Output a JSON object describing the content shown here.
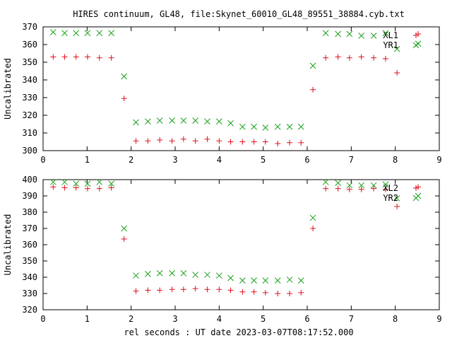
{
  "title": "HIRES continuum, GL48, file:Skynet_60010_GL48_89551_38884.cyb.txt",
  "xlabel": "rel seconds : UT date 2023-03-07T08:17:52.000",
  "colors": {
    "red": "#e0101a",
    "green": "#1aa01a"
  },
  "chart_data": [
    {
      "type": "scatter",
      "ylabel": "Uncalibrated",
      "xlim": [
        0,
        9
      ],
      "ylim": [
        300,
        370
      ],
      "xticks": [
        "0",
        "1",
        "2",
        "3",
        "4",
        "5",
        "6",
        "7",
        "8",
        "9"
      ],
      "yticks": [
        "300",
        "310",
        "320",
        "330",
        "340",
        "350",
        "360",
        "370"
      ],
      "grid": false,
      "legend_position": "top-right",
      "series": [
        {
          "name": "XL1",
          "marker": "plus",
          "color": "#e0101a",
          "x": [
            0.23,
            0.49,
            0.75,
            1.01,
            1.28,
            1.55,
            1.84,
            2.11,
            2.38,
            2.65,
            2.93,
            3.19,
            3.46,
            3.73,
            4.0,
            4.26,
            4.53,
            4.79,
            5.05,
            5.33,
            5.6,
            5.86,
            6.13,
            6.42,
            6.7,
            6.96,
            7.23,
            7.51,
            7.78,
            8.04,
            8.52
          ],
          "y": [
            353,
            353,
            353,
            353,
            352.5,
            352.5,
            329.5,
            305.5,
            305.5,
            306,
            305.5,
            306.5,
            305.5,
            306.5,
            305.5,
            305,
            305,
            305,
            305,
            304,
            304.5,
            304.5,
            334.5,
            352.5,
            353,
            352.5,
            353,
            352.5,
            352,
            344,
            366
          ]
        },
        {
          "name": "YR1",
          "marker": "cross",
          "color": "#1aa01a",
          "x": [
            0.23,
            0.49,
            0.75,
            1.01,
            1.28,
            1.55,
            1.84,
            2.11,
            2.38,
            2.65,
            2.93,
            3.19,
            3.46,
            3.73,
            4.0,
            4.26,
            4.53,
            4.79,
            5.05,
            5.33,
            5.6,
            5.86,
            6.13,
            6.42,
            6.7,
            6.96,
            7.23,
            7.51,
            7.78,
            8.04,
            8.52
          ],
          "y": [
            367,
            366.5,
            366.5,
            366.5,
            366.5,
            366.5,
            342,
            316,
            316.5,
            317,
            317,
            317,
            317,
            316.5,
            316.5,
            315.5,
            313.5,
            313.5,
            313,
            313.5,
            313.5,
            313.5,
            348,
            366.5,
            366,
            366,
            365,
            365,
            366.5,
            357.5,
            360.5
          ]
        }
      ]
    },
    {
      "type": "scatter",
      "ylabel": "Uncalibrated",
      "xlim": [
        0,
        9
      ],
      "ylim": [
        320,
        400
      ],
      "xticks": [
        "0",
        "1",
        "2",
        "3",
        "4",
        "5",
        "6",
        "7",
        "8",
        "9"
      ],
      "yticks": [
        "320",
        "330",
        "340",
        "350",
        "360",
        "370",
        "380",
        "390",
        "400"
      ],
      "grid": false,
      "legend_position": "top-right",
      "series": [
        {
          "name": "XL2",
          "marker": "plus",
          "color": "#e0101a",
          "x": [
            0.23,
            0.49,
            0.75,
            1.01,
            1.28,
            1.55,
            1.84,
            2.11,
            2.38,
            2.65,
            2.93,
            3.19,
            3.46,
            3.73,
            4.0,
            4.26,
            4.53,
            4.79,
            5.05,
            5.33,
            5.6,
            5.86,
            6.13,
            6.42,
            6.7,
            6.96,
            7.23,
            7.51,
            7.78,
            8.04,
            8.52
          ],
          "y": [
            395.5,
            395,
            395,
            394.5,
            394.5,
            395,
            363.5,
            331.5,
            332,
            332,
            332.5,
            332.5,
            333,
            332.5,
            332.5,
            332,
            331,
            331,
            330.5,
            330,
            330,
            330.5,
            370,
            394.5,
            394.5,
            394,
            394,
            394.5,
            394,
            383.5,
            395.5
          ]
        },
        {
          "name": "YR2",
          "marker": "cross",
          "color": "#1aa01a",
          "x": [
            0.23,
            0.49,
            0.75,
            1.01,
            1.28,
            1.55,
            1.84,
            2.11,
            2.38,
            2.65,
            2.93,
            3.19,
            3.46,
            3.73,
            4.0,
            4.26,
            4.53,
            4.79,
            5.05,
            5.33,
            5.6,
            5.86,
            6.13,
            6.42,
            6.7,
            6.96,
            7.23,
            7.51,
            7.78,
            8.04,
            8.52
          ],
          "y": [
            398.5,
            398.5,
            397.5,
            397.5,
            398.5,
            397.5,
            370,
            341,
            342,
            342.5,
            342.5,
            342.5,
            341.5,
            341.5,
            341,
            339.5,
            338,
            338,
            338,
            338,
            338.5,
            338,
            376.5,
            398.5,
            398,
            396.5,
            396.5,
            396.5,
            397,
            388.5,
            390
          ]
        }
      ]
    }
  ]
}
